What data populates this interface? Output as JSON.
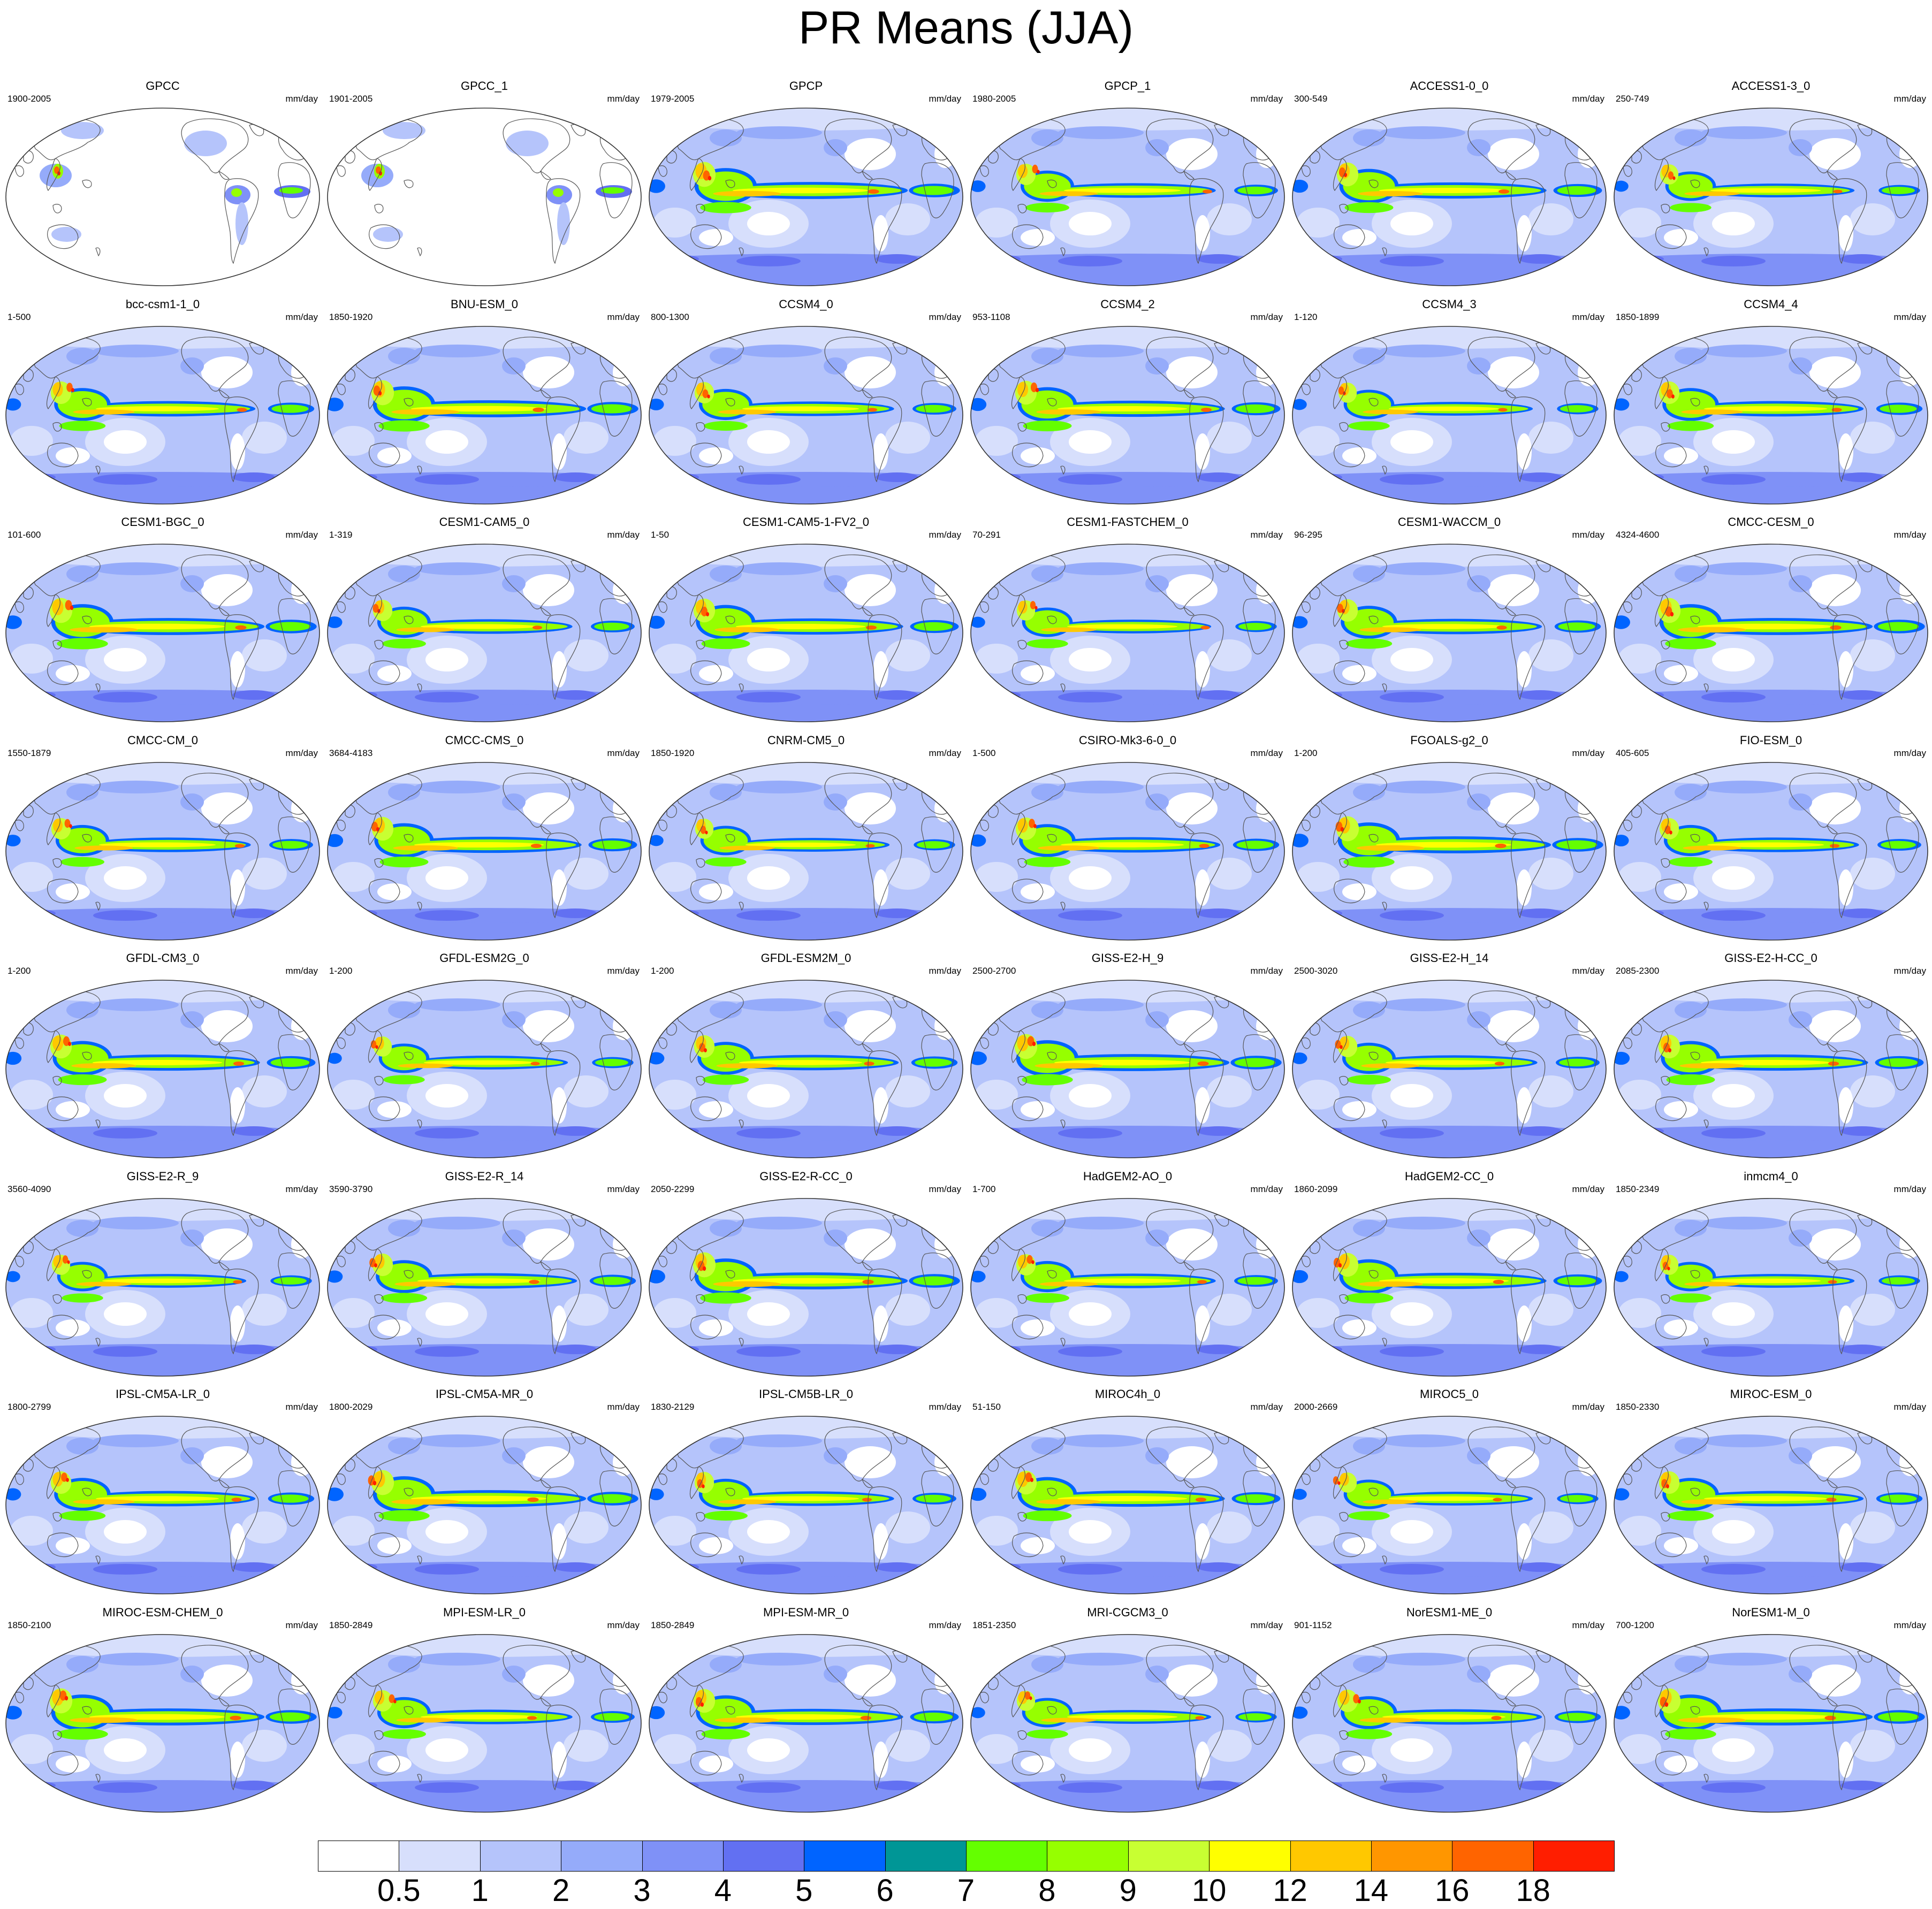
{
  "title": "PR Means (JJA)",
  "units": "mm/day",
  "colorbar": {
    "colors": [
      "#ffffff",
      "#d7dffc",
      "#b5c4fb",
      "#95abfa",
      "#7f91f7",
      "#6270f2",
      "#0064ff",
      "#009696",
      "#64ff00",
      "#96ff00",
      "#c8ff32",
      "#ffff00",
      "#ffc800",
      "#ff9600",
      "#ff6400",
      "#ff1e00"
    ],
    "labels": [
      "0.5",
      "1",
      "2",
      "3",
      "4",
      "5",
      "6",
      "7",
      "8",
      "9",
      "10",
      "12",
      "14",
      "16",
      "18"
    ]
  },
  "panels": [
    {
      "name": "GPCC",
      "years": "1900-2005"
    },
    {
      "name": "GPCC_1",
      "years": "1901-2005"
    },
    {
      "name": "GPCP",
      "years": "1979-2005"
    },
    {
      "name": "GPCP_1",
      "years": "1980-2005"
    },
    {
      "name": "ACCESS1-0_0",
      "years": "300-549"
    },
    {
      "name": "ACCESS1-3_0",
      "years": "250-749"
    },
    {
      "name": "bcc-csm1-1_0",
      "years": "1-500"
    },
    {
      "name": "BNU-ESM_0",
      "years": "1850-1920"
    },
    {
      "name": "CCSM4_0",
      "years": "800-1300"
    },
    {
      "name": "CCSM4_2",
      "years": "953-1108"
    },
    {
      "name": "CCSM4_3",
      "years": "1-120"
    },
    {
      "name": "CCSM4_4",
      "years": "1850-1899"
    },
    {
      "name": "CESM1-BGC_0",
      "years": "101-600"
    },
    {
      "name": "CESM1-CAM5_0",
      "years": "1-319"
    },
    {
      "name": "CESM1-CAM5-1-FV2_0",
      "years": "1-50"
    },
    {
      "name": "CESM1-FASTCHEM_0",
      "years": "70-291"
    },
    {
      "name": "CESM1-WACCM_0",
      "years": "96-295"
    },
    {
      "name": "CMCC-CESM_0",
      "years": "4324-4600"
    },
    {
      "name": "CMCC-CM_0",
      "years": "1550-1879"
    },
    {
      "name": "CMCC-CMS_0",
      "years": "3684-4183"
    },
    {
      "name": "CNRM-CM5_0",
      "years": "1850-1920"
    },
    {
      "name": "CSIRO-Mk3-6-0_0",
      "years": "1-500"
    },
    {
      "name": "FGOALS-g2_0",
      "years": "1-200"
    },
    {
      "name": "FIO-ESM_0",
      "years": "405-605"
    },
    {
      "name": "GFDL-CM3_0",
      "years": "1-200"
    },
    {
      "name": "GFDL-ESM2G_0",
      "years": "1-200"
    },
    {
      "name": "GFDL-ESM2M_0",
      "years": "1-200"
    },
    {
      "name": "GISS-E2-H_9",
      "years": "2500-2700"
    },
    {
      "name": "GISS-E2-H_14",
      "years": "2500-3020"
    },
    {
      "name": "GISS-E2-H-CC_0",
      "years": "2085-2300"
    },
    {
      "name": "GISS-E2-R_9",
      "years": "3560-4090"
    },
    {
      "name": "GISS-E2-R_14",
      "years": "3590-3790"
    },
    {
      "name": "GISS-E2-R-CC_0",
      "years": "2050-2299"
    },
    {
      "name": "HadGEM2-AO_0",
      "years": "1-700"
    },
    {
      "name": "HadGEM2-CC_0",
      "years": "1860-2099"
    },
    {
      "name": "inmcm4_0",
      "years": "1850-2349"
    },
    {
      "name": "IPSL-CM5A-LR_0",
      "years": "1800-2799"
    },
    {
      "name": "IPSL-CM5A-MR_0",
      "years": "1800-2029"
    },
    {
      "name": "IPSL-CM5B-LR_0",
      "years": "1830-2129"
    },
    {
      "name": "MIROC4h_0",
      "years": "51-150"
    },
    {
      "name": "MIROC5_0",
      "years": "2000-2669"
    },
    {
      "name": "MIROC-ESM_0",
      "years": "1850-2330"
    },
    {
      "name": "MIROC-ESM-CHEM_0",
      "years": "1850-2100"
    },
    {
      "name": "MPI-ESM-LR_0",
      "years": "1850-2849"
    },
    {
      "name": "MPI-ESM-MR_0",
      "years": "1850-2849"
    },
    {
      "name": "MRI-CGCM3_0",
      "years": "1851-2350"
    },
    {
      "name": "NorESM1-ME_0",
      "years": "901-1152"
    },
    {
      "name": "NorESM1-M_0",
      "years": "700-1200"
    }
  ]
}
